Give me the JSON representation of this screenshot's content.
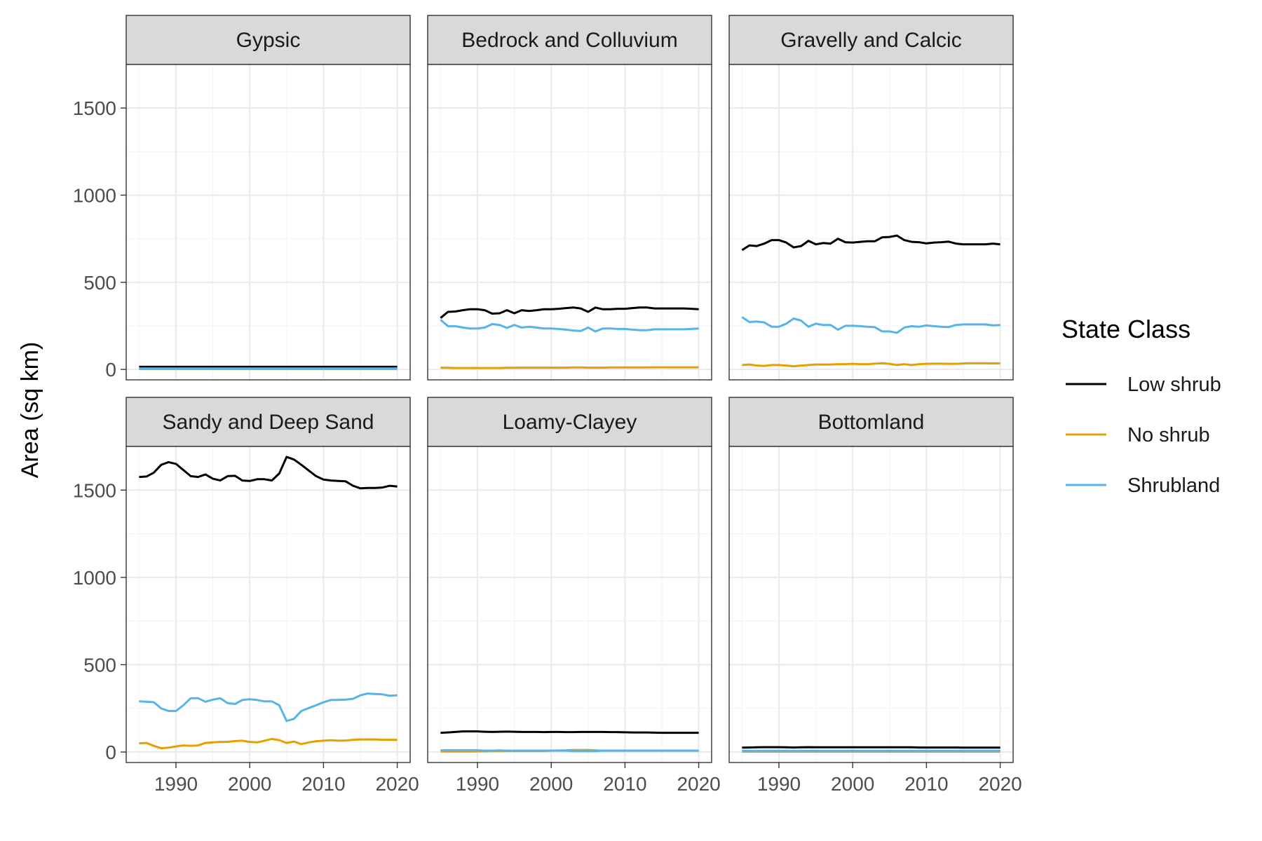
{
  "chart_data": {
    "type": "line",
    "layout": "facet-grid-2x3",
    "ylabel": "Area (sq km)",
    "xlabel": "",
    "x_range": [
      1985,
      2020
    ],
    "ylim": [
      -60,
      1750
    ],
    "x_ticks": [
      1990,
      2000,
      2010,
      2020
    ],
    "y_ticks": [
      0,
      500,
      1000,
      1500
    ],
    "grid": true,
    "legend": {
      "title": "State Class",
      "position": "right",
      "entries": [
        {
          "name": "Low shrub",
          "color": "#000000"
        },
        {
          "name": "No shrub",
          "color": "#E69F00"
        },
        {
          "name": "Shrubland",
          "color": "#56B4E9"
        }
      ]
    },
    "x": [
      1985,
      1986,
      1987,
      1988,
      1989,
      1990,
      1991,
      1992,
      1993,
      1994,
      1995,
      1996,
      1997,
      1998,
      1999,
      2000,
      2001,
      2002,
      2003,
      2004,
      2005,
      2006,
      2007,
      2008,
      2009,
      2010,
      2011,
      2012,
      2013,
      2014,
      2015,
      2016,
      2017,
      2018,
      2019,
      2020
    ],
    "panels": [
      {
        "title": "Gypsic",
        "series": [
          {
            "name": "Low shrub",
            "values": [
              15,
              15,
              15,
              15,
              15,
              15,
              15,
              15,
              15,
              15,
              15,
              15,
              15,
              15,
              15,
              15,
              15,
              15,
              15,
              15,
              15,
              15,
              15,
              15,
              15,
              15,
              15,
              15,
              15,
              15,
              15,
              15,
              15,
              15,
              15,
              15
            ]
          },
          {
            "name": "No shrub",
            "values": [
              2,
              2,
              2,
              2,
              2,
              2,
              2,
              2,
              2,
              2,
              2,
              2,
              2,
              2,
              2,
              2,
              2,
              2,
              2,
              2,
              2,
              2,
              2,
              2,
              2,
              2,
              2,
              2,
              2,
              2,
              2,
              2,
              2,
              2,
              2,
              2
            ]
          },
          {
            "name": "Shrubland",
            "values": [
              5,
              5,
              5,
              5,
              5,
              5,
              5,
              5,
              5,
              5,
              5,
              5,
              5,
              5,
              5,
              5,
              5,
              5,
              5,
              5,
              5,
              5,
              5,
              5,
              5,
              5,
              5,
              5,
              5,
              5,
              5,
              5,
              5,
              5,
              5,
              5
            ]
          }
        ]
      },
      {
        "title": "Bedrock and Colluvium",
        "series": [
          {
            "name": "Low shrub",
            "values": [
              295,
              330,
              332,
              340,
              345,
              345,
              340,
              320,
              322,
              340,
              322,
              340,
              335,
              340,
              345,
              345,
              348,
              352,
              355,
              350,
              330,
              355,
              345,
              345,
              348,
              348,
              352,
              355,
              355,
              350,
              350,
              350,
              350,
              350,
              348,
              345
            ]
          },
          {
            "name": "No shrub",
            "values": [
              10,
              9,
              8,
              8,
              8,
              8,
              8,
              8,
              8,
              9,
              9,
              10,
              10,
              10,
              10,
              10,
              10,
              10,
              11,
              11,
              10,
              10,
              10,
              11,
              11,
              11,
              11,
              11,
              11,
              12,
              12,
              12,
              12,
              12,
              12,
              12
            ]
          },
          {
            "name": "Shrubland",
            "values": [
              285,
              248,
              248,
              240,
              235,
              235,
              240,
              260,
              255,
              238,
              255,
              240,
              245,
              240,
              235,
              235,
              232,
              228,
              223,
              220,
              240,
              218,
              235,
              235,
              232,
              232,
              228,
              225,
              225,
              230,
              230,
              230,
              230,
              230,
              232,
              235
            ]
          }
        ]
      },
      {
        "title": "Gravelly and Calcic",
        "series": [
          {
            "name": "Low shrub",
            "values": [
              685,
              712,
              708,
              722,
              742,
              742,
              728,
              700,
              708,
              738,
              718,
              725,
              722,
              750,
              730,
              728,
              732,
              735,
              735,
              758,
              760,
              768,
              742,
              732,
              730,
              723,
              728,
              730,
              733,
              722,
              718,
              718,
              718,
              718,
              722,
              718
            ]
          },
          {
            "name": "No shrub",
            "values": [
              25,
              28,
              22,
              20,
              25,
              25,
              22,
              18,
              22,
              25,
              28,
              28,
              28,
              30,
              30,
              32,
              30,
              30,
              33,
              35,
              32,
              25,
              30,
              25,
              30,
              32,
              33,
              33,
              32,
              32,
              34,
              35,
              35,
              35,
              34,
              35
            ]
          },
          {
            "name": "Shrubland",
            "values": [
              300,
              272,
              275,
              270,
              245,
              245,
              262,
              292,
              280,
              245,
              262,
              255,
              255,
              228,
              250,
              250,
              248,
              245,
              242,
              218,
              218,
              210,
              240,
              248,
              245,
              252,
              248,
              245,
              243,
              255,
              258,
              258,
              258,
              258,
              252,
              255
            ]
          }
        ]
      },
      {
        "title": "Sandy and Deep Sand",
        "series": [
          {
            "name": "Low shrub",
            "values": [
              1575,
              1578,
              1600,
              1645,
              1660,
              1650,
              1615,
              1580,
              1575,
              1590,
              1565,
              1555,
              1580,
              1582,
              1555,
              1552,
              1562,
              1562,
              1555,
              1595,
              1690,
              1675,
              1645,
              1612,
              1580,
              1560,
              1555,
              1552,
              1550,
              1525,
              1510,
              1512,
              1512,
              1515,
              1525,
              1520
            ]
          },
          {
            "name": "No shrub",
            "values": [
              50,
              52,
              35,
              22,
              25,
              32,
              38,
              35,
              38,
              52,
              55,
              58,
              58,
              63,
              65,
              58,
              55,
              65,
              75,
              68,
              52,
              60,
              45,
              55,
              62,
              65,
              68,
              65,
              66,
              70,
              72,
              72,
              72,
              70,
              70,
              70
            ]
          },
          {
            "name": "Shrubland",
            "values": [
              290,
              288,
              285,
              250,
              235,
              235,
              268,
              308,
              308,
              288,
              300,
              308,
              280,
              275,
              298,
              302,
              298,
              290,
              290,
              268,
              178,
              190,
              235,
              252,
              268,
              285,
              298,
              298,
              300,
              305,
              325,
              335,
              332,
              330,
              322,
              325
            ]
          }
        ]
      },
      {
        "title": "Loamy-Clayey",
        "series": [
          {
            "name": "Low shrub",
            "values": [
              110,
              112,
              115,
              118,
              118,
              118,
              116,
              115,
              116,
              117,
              116,
              115,
              115,
              115,
              114,
              115,
              115,
              114,
              114,
              115,
              115,
              115,
              115,
              114,
              114,
              113,
              112,
              112,
              112,
              111,
              110,
              110,
              110,
              110,
              110,
              110
            ]
          },
          {
            "name": "No shrub",
            "values": [
              3,
              3,
              3,
              3,
              3,
              4,
              4,
              5,
              5,
              6,
              6,
              6,
              6,
              6,
              6,
              8,
              9,
              10,
              12,
              12,
              12,
              10,
              8,
              8,
              8,
              8,
              8,
              8,
              8,
              8,
              8,
              8,
              8,
              8,
              8,
              8
            ]
          },
          {
            "name": "Shrubland",
            "values": [
              10,
              10,
              10,
              10,
              10,
              10,
              8,
              8,
              9,
              8,
              8,
              8,
              8,
              8,
              8,
              8,
              8,
              8,
              5,
              5,
              5,
              5,
              8,
              8,
              8,
              8,
              8,
              8,
              8,
              8,
              8,
              8,
              8,
              8,
              8,
              8
            ]
          }
        ]
      },
      {
        "title": "Bottomland",
        "series": [
          {
            "name": "Low shrub",
            "values": [
              25,
              26,
              27,
              28,
              28,
              28,
              27,
              26,
              27,
              28,
              27,
              27,
              27,
              27,
              27,
              27,
              27,
              27,
              27,
              27,
              27,
              27,
              27,
              27,
              26,
              26,
              26,
              26,
              26,
              26,
              25,
              25,
              25,
              25,
              25,
              25
            ]
          },
          {
            "name": "No shrub",
            "values": [
              2,
              2,
              2,
              2,
              2,
              2,
              2,
              2,
              2,
              2,
              2,
              2,
              2,
              2,
              2,
              2,
              2,
              2,
              2,
              2,
              2,
              2,
              2,
              2,
              2,
              2,
              2,
              2,
              2,
              2,
              2,
              2,
              2,
              2,
              2,
              2
            ]
          },
          {
            "name": "Shrubland",
            "values": [
              7,
              7,
              7,
              7,
              7,
              7,
              7,
              7,
              7,
              7,
              7,
              7,
              7,
              7,
              7,
              7,
              7,
              7,
              7,
              7,
              7,
              7,
              7,
              7,
              7,
              7,
              7,
              7,
              7,
              7,
              7,
              7,
              7,
              7,
              7,
              7
            ]
          }
        ]
      }
    ]
  }
}
